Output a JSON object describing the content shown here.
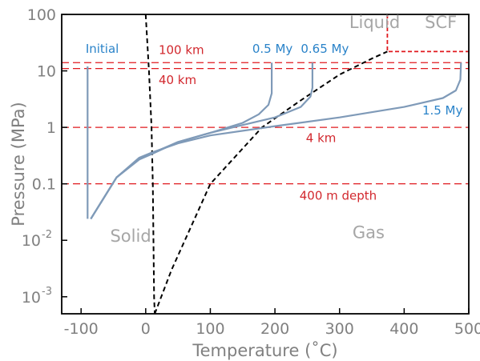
{
  "chart_data": {
    "type": "line",
    "xlabel": "Temperature (˚C)",
    "ylabel": "Pressure (MPa)",
    "xlim": [
      -130,
      500
    ],
    "ylim": [
      0.0005,
      100
    ],
    "yscale": "log",
    "x_ticks": [
      {
        "value": -100,
        "label": "-100"
      },
      {
        "value": 0,
        "label": "0"
      },
      {
        "value": 100,
        "label": "100"
      },
      {
        "value": 200,
        "label": "200"
      },
      {
        "value": 300,
        "label": "300"
      },
      {
        "value": 400,
        "label": "400"
      },
      {
        "value": 500,
        "label": "500"
      }
    ],
    "y_ticks": [
      {
        "value": 100,
        "label": "100",
        "exp": ""
      },
      {
        "value": 10,
        "label": "10",
        "exp": ""
      },
      {
        "value": 1,
        "label": "1",
        "exp": ""
      },
      {
        "value": 0.1,
        "label": "0.1",
        "exp": ""
      },
      {
        "value": 0.01,
        "label": "10",
        "exp": "-2"
      },
      {
        "value": 0.001,
        "label": "10",
        "exp": "-3"
      }
    ],
    "regions": [
      {
        "label": "Liquid",
        "x": 315,
        "y": 57
      },
      {
        "label": "SCF",
        "x": 432,
        "y": 57
      },
      {
        "label": "Solid",
        "x": -55,
        "y": 0.0095
      },
      {
        "label": "Gas",
        "x": 320,
        "y": 0.011
      }
    ],
    "depth_lines": [
      {
        "label": "100 km",
        "pressure": 14,
        "label_x": 20,
        "label_y": 20
      },
      {
        "label": "40 km",
        "pressure": 11,
        "label_x": 20,
        "label_y": 5.8
      },
      {
        "label": "4 km",
        "pressure": 1.0,
        "label_x": 248,
        "label_y": 0.55
      },
      {
        "label": "400 m depth",
        "pressure": 0.1,
        "label_x": 238,
        "label_y": 0.052
      }
    ],
    "phase_boundaries": [
      {
        "name": "solid-liquid",
        "x": [
          0,
          5,
          9,
          11,
          12,
          13,
          14
        ],
        "y": [
          100,
          10,
          1,
          0.1,
          0.01,
          0.001,
          0.0005
        ]
      },
      {
        "name": "liquid-gas",
        "x": [
          14,
          40,
          100,
          180,
          240,
          300,
          350,
          374
        ],
        "y": [
          0.0005,
          0.003,
          0.1,
          1.0,
          3.0,
          8.6,
          16.5,
          22
        ]
      }
    ],
    "critical_point": {
      "temperature": 374,
      "pressure": 22
    },
    "series": [
      {
        "name": "Initial",
        "label_x": -93,
        "label_y": 21,
        "x": [
          -90,
          -90,
          -90,
          -90
        ],
        "y": [
          12,
          1,
          0.1,
          0.024
        ]
      },
      {
        "name": "0.5 My",
        "label_x": 165,
        "label_y": 21,
        "x": [
          -85,
          -45,
          -10,
          10,
          50,
          100,
          150,
          175,
          190,
          195,
          195
        ],
        "y": [
          0.024,
          0.13,
          0.27,
          0.34,
          0.55,
          0.8,
          1.2,
          1.7,
          2.5,
          4,
          14
        ]
      },
      {
        "name": "0.65 My",
        "label_x": 240,
        "label_y": 21,
        "x": [
          -85,
          -45,
          -10,
          10,
          50,
          100,
          150,
          200,
          240,
          255,
          258,
          258
        ],
        "y": [
          0.024,
          0.13,
          0.28,
          0.35,
          0.55,
          0.8,
          1.1,
          1.5,
          2.3,
          3.5,
          5,
          14
        ]
      },
      {
        "name": "1.5 My",
        "label_x": 428,
        "label_y": 1.7,
        "x": [
          -85,
          -45,
          -10,
          10,
          50,
          100,
          200,
          300,
          400,
          460,
          480,
          487,
          488
        ],
        "y": [
          0.024,
          0.13,
          0.29,
          0.36,
          0.52,
          0.72,
          1.05,
          1.5,
          2.3,
          3.3,
          4.5,
          7,
          14
        ]
      }
    ]
  },
  "colors": {
    "depth_line": "#e0191e",
    "depth_label": "#d2282e",
    "series_line": "#7f9ab8",
    "series_label": "#2a83c9",
    "phase_boundary": "#000000",
    "critical_box": "#e0191e"
  }
}
